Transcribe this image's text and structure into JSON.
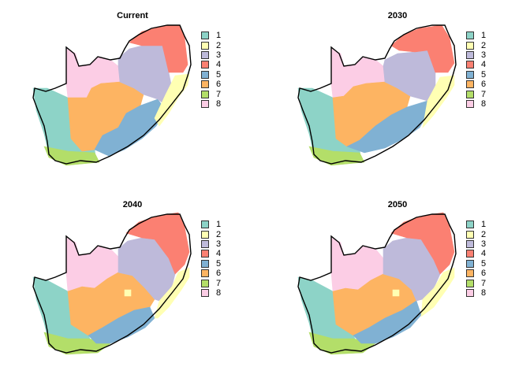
{
  "panels": [
    {
      "title": "Current"
    },
    {
      "title": "2030"
    },
    {
      "title": "2040"
    },
    {
      "title": "2050"
    }
  ],
  "legend": {
    "items": [
      {
        "label": "1",
        "color": "#8DD3C7"
      },
      {
        "label": "2",
        "color": "#FFFFB3"
      },
      {
        "label": "3",
        "color": "#BEBADA"
      },
      {
        "label": "4",
        "color": "#FB8072"
      },
      {
        "label": "5",
        "color": "#80B1D3"
      },
      {
        "label": "6",
        "color": "#FDB462"
      },
      {
        "label": "7",
        "color": "#B3DE69"
      },
      {
        "label": "8",
        "color": "#FCCDE5"
      }
    ]
  }
}
